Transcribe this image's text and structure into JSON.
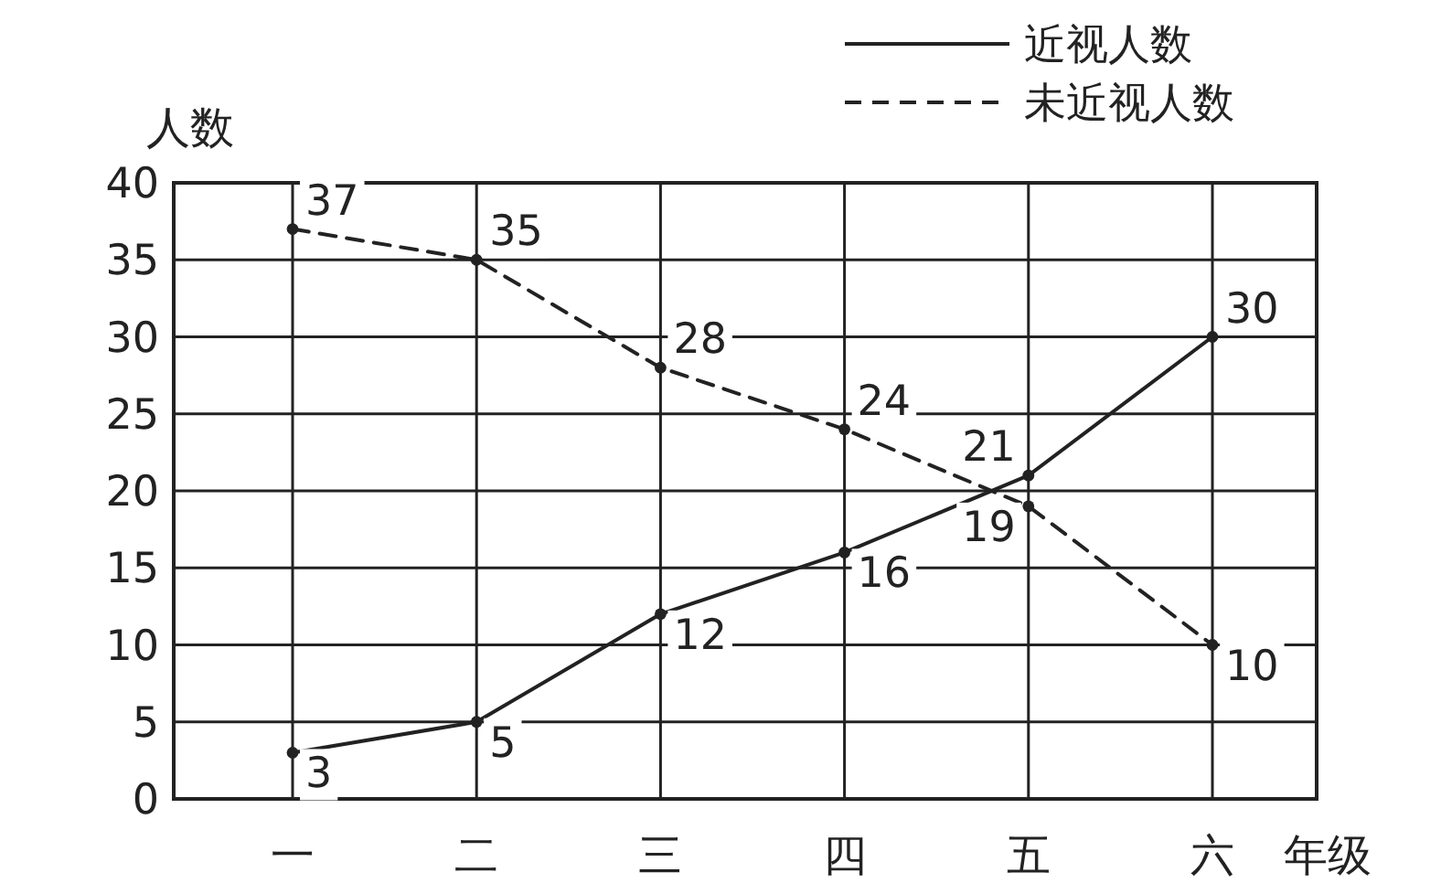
{
  "chart_data": {
    "type": "line",
    "xlabel": "年级",
    "ylabel": "人数",
    "categories": [
      "一",
      "二",
      "三",
      "四",
      "五",
      "六"
    ],
    "series": [
      {
        "name": "近视人数",
        "color": "#222222",
        "line_style": "solid",
        "values": [
          3,
          5,
          12,
          16,
          21,
          30
        ]
      },
      {
        "name": "未近视人数",
        "color": "#222222",
        "line_style": "dashed",
        "values": [
          37,
          35,
          28,
          24,
          19,
          10
        ]
      }
    ],
    "ylim": [
      0,
      40
    ],
    "yticks": [
      0,
      5,
      10,
      15,
      20,
      25,
      30,
      35,
      40
    ],
    "grid": true,
    "legend": "top right",
    "marker": "circle",
    "data_labels": true
  }
}
